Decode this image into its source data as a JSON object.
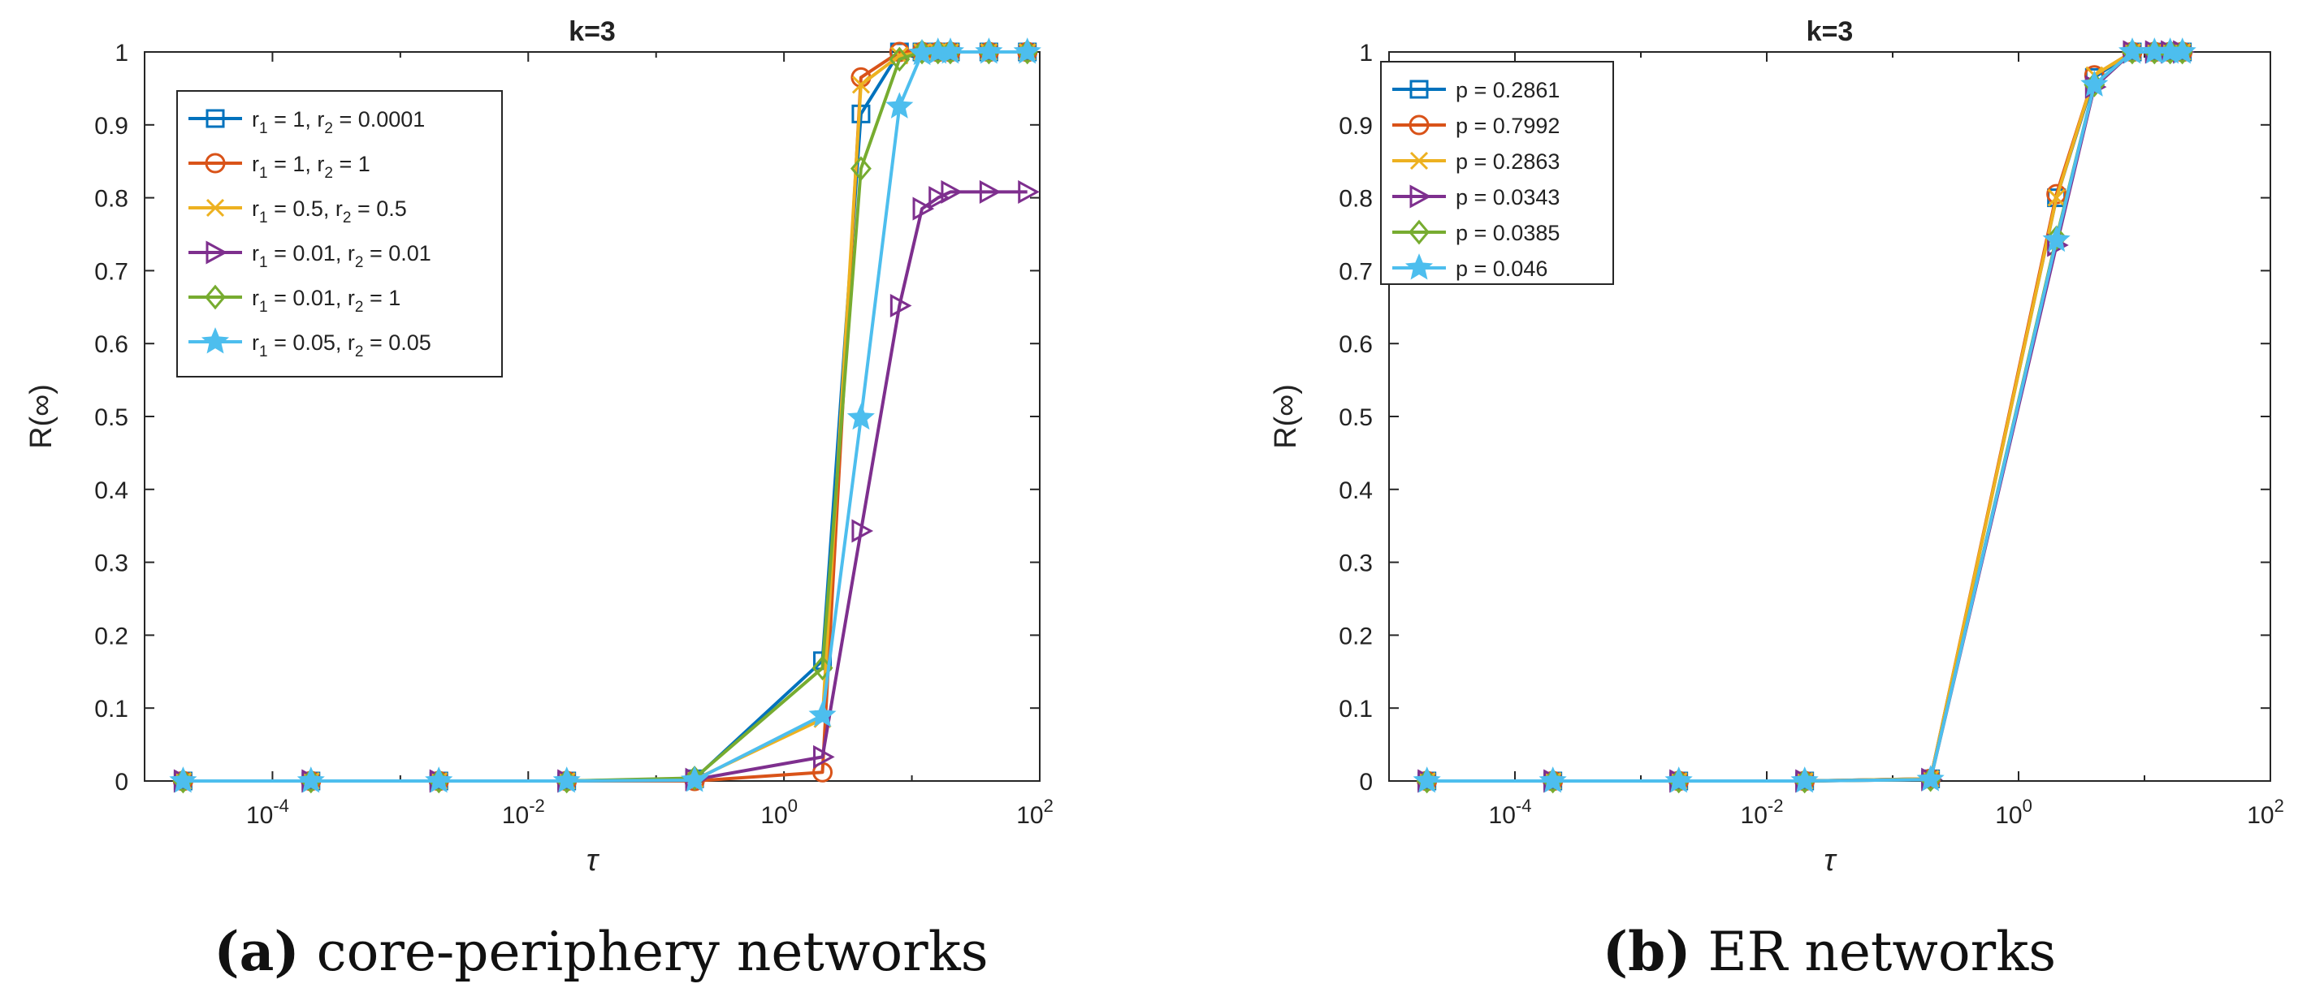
{
  "chart_data": [
    {
      "type": "line",
      "title": "k=3",
      "xlabel": "τ",
      "ylabel": "R(∞)",
      "xscale": "log",
      "xlim": [
        1e-05,
        100
      ],
      "ylim": [
        0,
        1
      ],
      "x_ticks": [
        {
          "base": "10",
          "exp": "-4"
        },
        {
          "base": "10",
          "exp": "-2"
        },
        {
          "base": "10",
          "exp": "0"
        },
        {
          "base": "10",
          "exp": "2"
        }
      ],
      "y_ticks": [
        "0",
        "0.1",
        "0.2",
        "0.3",
        "0.4",
        "0.5",
        "0.6",
        "0.7",
        "0.8",
        "0.9",
        "1"
      ],
      "legend_position": "top-left",
      "caption": {
        "letter": "(a)",
        "text": " core-periphery networks"
      },
      "x": [
        2e-05,
        0.0002,
        0.002,
        0.02,
        0.2,
        2,
        4,
        8,
        12,
        16,
        20,
        40,
        80
      ],
      "series": [
        {
          "name": "r1=1, r2=0.0001",
          "legend": [
            {
              "t": "r"
            },
            {
              "t": "1",
              "sub": true
            },
            {
              "t": " = 1, r"
            },
            {
              "t": "2",
              "sub": true
            },
            {
              "t": " = 0.0001"
            }
          ],
          "color": "#0072BD",
          "marker": "square",
          "values": [
            0,
            0,
            0,
            0,
            0.003,
            0.165,
            0.915,
            1.0,
            1.0,
            1.0,
            1.0,
            1.0,
            1.0
          ]
        },
        {
          "name": "r1=1, r2=1",
          "legend": [
            {
              "t": "r"
            },
            {
              "t": "1",
              "sub": true
            },
            {
              "t": " = 1, r"
            },
            {
              "t": "2",
              "sub": true
            },
            {
              "t": " = 1"
            }
          ],
          "color": "#D95319",
          "marker": "circle",
          "values": [
            0,
            0,
            0,
            0,
            0.0,
            0.012,
            0.965,
            1.0,
            1.0,
            1.0,
            1.0,
            1.0,
            1.0
          ]
        },
        {
          "name": "r1=0.5, r2=0.5",
          "legend": [
            {
              "t": "r"
            },
            {
              "t": "1",
              "sub": true
            },
            {
              "t": " = 0.5, r"
            },
            {
              "t": "2",
              "sub": true
            },
            {
              "t": " = 0.5"
            }
          ],
          "color": "#EDB120",
          "marker": "x",
          "values": [
            0,
            0,
            0,
            0,
            0.002,
            0.085,
            0.955,
            0.995,
            1.0,
            1.0,
            1.0,
            1.0,
            1.0
          ]
        },
        {
          "name": "r1=0.01, r2=0.01",
          "legend": [
            {
              "t": "r"
            },
            {
              "t": "1",
              "sub": true
            },
            {
              "t": " = 0.01, r"
            },
            {
              "t": "2",
              "sub": true
            },
            {
              "t": " = 0.01"
            }
          ],
          "color": "#7E2F8E",
          "marker": "triangle-right",
          "values": [
            0,
            0,
            0,
            0,
            0.002,
            0.033,
            0.343,
            0.652,
            0.785,
            0.8,
            0.808,
            0.808,
            0.808
          ]
        },
        {
          "name": "r1=0.01, r2=1",
          "legend": [
            {
              "t": "r"
            },
            {
              "t": "1",
              "sub": true
            },
            {
              "t": " = 0.01, r"
            },
            {
              "t": "2",
              "sub": true
            },
            {
              "t": " = 1"
            }
          ],
          "color": "#77AC30",
          "marker": "diamond",
          "values": [
            0,
            0,
            0,
            0,
            0.004,
            0.155,
            0.84,
            0.99,
            1.0,
            1.0,
            1.0,
            1.0,
            1.0
          ]
        },
        {
          "name": "r1=0.05, r2=0.05",
          "legend": [
            {
              "t": "r"
            },
            {
              "t": "1",
              "sub": true
            },
            {
              "t": " = 0.05, r"
            },
            {
              "t": "2",
              "sub": true
            },
            {
              "t": " = 0.05"
            }
          ],
          "color": "#4DBEEE",
          "marker": "star",
          "values": [
            0,
            0,
            0,
            0,
            0.001,
            0.09,
            0.498,
            0.925,
            0.998,
            1.0,
            1.0,
            1.0,
            1.0
          ]
        }
      ]
    },
    {
      "type": "line",
      "title": "k=3",
      "xlabel": "τ",
      "ylabel": "R(∞)",
      "xscale": "log",
      "xlim": [
        1e-05,
        100
      ],
      "ylim": [
        0,
        1
      ],
      "x_ticks": [
        {
          "base": "10",
          "exp": "-4"
        },
        {
          "base": "10",
          "exp": "-2"
        },
        {
          "base": "10",
          "exp": "0"
        },
        {
          "base": "10",
          "exp": "2"
        }
      ],
      "y_ticks": [
        "0",
        "0.1",
        "0.2",
        "0.3",
        "0.4",
        "0.5",
        "0.6",
        "0.7",
        "0.8",
        "0.9",
        "1"
      ],
      "legend_position": "top-left",
      "caption": {
        "letter": "(b)",
        "text": " ER networks"
      },
      "x": [
        2e-05,
        0.0002,
        0.002,
        0.02,
        0.2,
        2,
        4,
        8,
        12,
        16,
        20
      ],
      "series": [
        {
          "name": "p = 0.2861",
          "legend": [
            {
              "t": "p = 0.2861"
            }
          ],
          "color": "#0072BD",
          "marker": "square",
          "values": [
            0,
            0,
            0,
            0,
            0.003,
            0.8,
            0.965,
            1.0,
            1.0,
            1.0,
            1.0
          ]
        },
        {
          "name": "p = 0.7992",
          "legend": [
            {
              "t": "p = 0.7992"
            }
          ],
          "color": "#D95319",
          "marker": "circle",
          "values": [
            0,
            0,
            0,
            0,
            0.003,
            0.805,
            0.968,
            1.0,
            1.0,
            1.0,
            1.0
          ]
        },
        {
          "name": "p = 0.2863",
          "legend": [
            {
              "t": "p = 0.2863"
            }
          ],
          "color": "#EDB120",
          "marker": "x",
          "values": [
            0,
            0,
            0,
            0,
            0.003,
            0.8,
            0.968,
            1.0,
            1.0,
            1.0,
            1.0
          ]
        },
        {
          "name": "p = 0.0343",
          "legend": [
            {
              "t": "p = 0.0343"
            }
          ],
          "color": "#7E2F8E",
          "marker": "triangle-right",
          "values": [
            0,
            0,
            0,
            0,
            0.002,
            0.735,
            0.952,
            1.0,
            1.0,
            1.0,
            1.0
          ]
        },
        {
          "name": "p = 0.0385",
          "legend": [
            {
              "t": "p = 0.0385"
            }
          ],
          "color": "#77AC30",
          "marker": "diamond",
          "values": [
            0,
            0,
            0,
            0,
            0.002,
            0.745,
            0.955,
            1.0,
            1.0,
            1.0,
            1.0
          ]
        },
        {
          "name": "p = 0.046",
          "legend": [
            {
              "t": "p = 0.046"
            }
          ],
          "color": "#4DBEEE",
          "marker": "star",
          "values": [
            0,
            0,
            0,
            0,
            0.002,
            0.742,
            0.955,
            1.0,
            1.0,
            1.0,
            1.0
          ]
        }
      ]
    }
  ]
}
